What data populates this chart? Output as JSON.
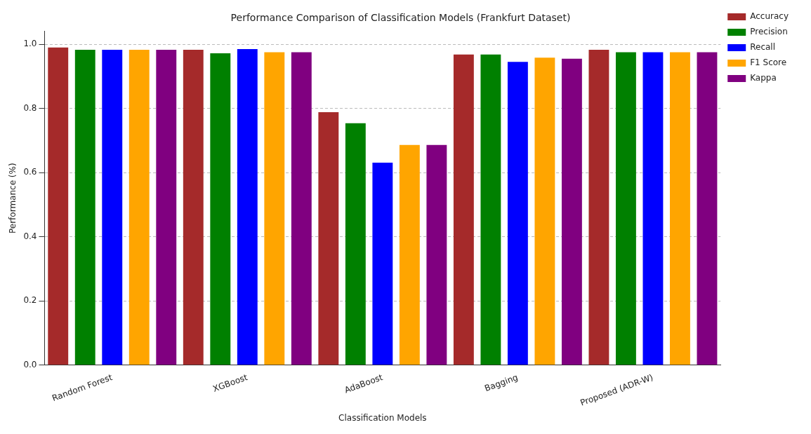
{
  "chart_data": {
    "type": "bar",
    "title": "Performance Comparison of Classification Models (Frankfurt Dataset)",
    "xlabel": "Classification Models",
    "ylabel": "Performance (%)",
    "categories": [
      "Random Forest",
      "XGBoost",
      "AdaBoost",
      "Bagging",
      "Proposed (ADR-W)"
    ],
    "series": [
      {
        "name": "Accuracy",
        "color": "#a52a2a",
        "values": [
          0.99,
          0.983,
          0.788,
          0.968,
          0.983
        ]
      },
      {
        "name": "Precision",
        "color": "#008000",
        "values": [
          0.983,
          0.972,
          0.754,
          0.968,
          0.975
        ]
      },
      {
        "name": "Recall",
        "color": "#0000ff",
        "values": [
          0.983,
          0.985,
          0.631,
          0.945,
          0.975
        ]
      },
      {
        "name": "F1 Score",
        "color": "#ffa500",
        "values": [
          0.983,
          0.975,
          0.686,
          0.958,
          0.975
        ]
      },
      {
        "name": "Kappa",
        "color": "#800080",
        "values": [
          0.983,
          0.975,
          0.686,
          0.955,
          0.975
        ]
      }
    ],
    "ylim": [
      0,
      1.04
    ],
    "yticks": [
      {
        "value": 0,
        "label": "0.0"
      },
      {
        "value": 0.2,
        "label": "0.2"
      },
      {
        "value": 0.4,
        "label": "0.4"
      },
      {
        "value": 0.6,
        "label": "0.6"
      },
      {
        "value": 0.8,
        "label": "0.8"
      },
      {
        "value": 1,
        "label": "1.0"
      }
    ],
    "grid": "y",
    "legend": "top right"
  }
}
